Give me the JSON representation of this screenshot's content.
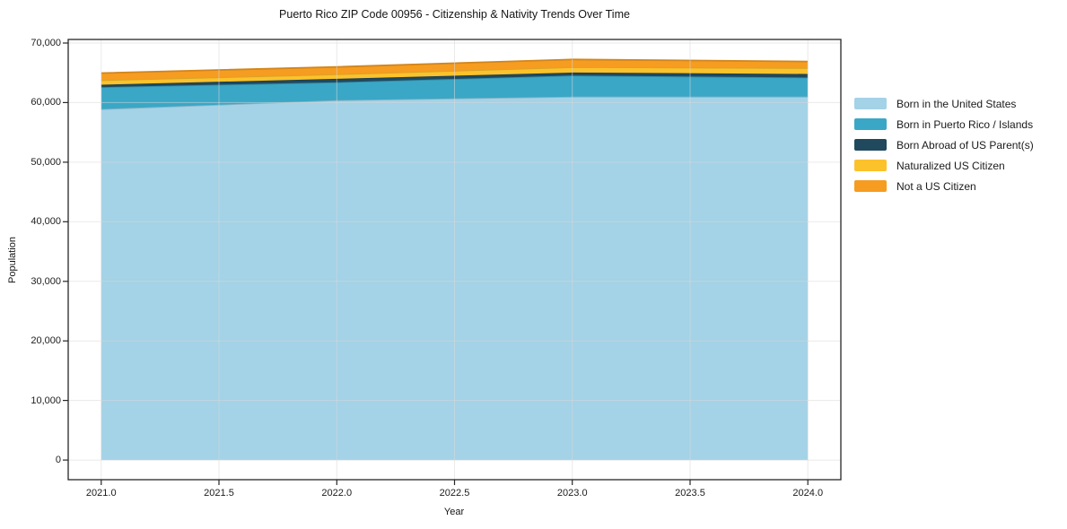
{
  "figure": {
    "title": "Puerto Rico ZIP Code 00956 - Citizenship & Nativity Trends Over Time",
    "xlabel": "Year",
    "ylabel": "Population"
  },
  "chart_data": {
    "type": "area",
    "stacked": true,
    "title": "Puerto Rico ZIP Code 00956 - Citizenship & Nativity Trends Over Time",
    "xlabel": "Year",
    "ylabel": "Population",
    "x": [
      2021,
      2022,
      2023,
      2024
    ],
    "series": [
      {
        "name": "Born in the United States",
        "color": "#a4d2e7",
        "values": [
          58900,
          60400,
          61000,
          61000
        ]
      },
      {
        "name": "Born in Puerto Rico / Islands",
        "color": "#3aa7c6",
        "values": [
          3700,
          3000,
          3550,
          3200
        ]
      },
      {
        "name": "Born Abroad of US Parent(s)",
        "color": "#20495e",
        "values": [
          400,
          600,
          500,
          600
        ]
      },
      {
        "name": "Naturalized US Citizen",
        "color": "#fbc22c",
        "values": [
          750,
          750,
          900,
          1000
        ]
      },
      {
        "name": "Not a US Citizen",
        "color": "#f69c20",
        "values": [
          1200,
          1250,
          1300,
          1100
        ]
      }
    ],
    "totals": [
      64950,
      66000,
      67250,
      66900
    ],
    "x_ticks": [
      2021.0,
      2021.5,
      2022.0,
      2022.5,
      2023.0,
      2023.5,
      2024.0
    ],
    "x_tick_labels": [
      "2021.0",
      "2021.5",
      "2022.0",
      "2022.5",
      "2023.0",
      "2023.5",
      "2024.0"
    ],
    "y_ticks": [
      0,
      10000,
      20000,
      30000,
      40000,
      50000,
      60000,
      70000
    ],
    "y_tick_labels": [
      "0",
      "10,000",
      "20,000",
      "30,000",
      "40,000",
      "50,000",
      "60,000",
      "70,000"
    ],
    "xlim": [
      2020.86,
      2024.14
    ],
    "ylim": [
      -3300,
      70600
    ],
    "grid": true,
    "grid_color": "#d8d8d8",
    "axis_color": "#262626",
    "legend_position": "right"
  }
}
